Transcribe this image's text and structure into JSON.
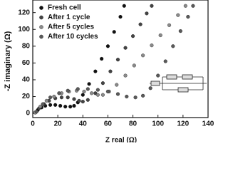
{
  "chart_data": {
    "type": "scatter",
    "x_label": "Z real (Ω)",
    "y_label": "-Z imaginary (Ω)",
    "xlim": [
      0,
      140
    ],
    "xticks": [
      0,
      20,
      40,
      60,
      80,
      100,
      120,
      140
    ],
    "ylim": [
      -5,
      135
    ],
    "yticks": [
      0,
      20,
      40,
      60,
      80,
      100,
      120
    ],
    "legend": "upper left",
    "series": [
      {
        "name": "Fresh cell",
        "color": "#111111",
        "x": [
          2,
          4,
          7,
          10,
          14,
          18,
          22,
          26,
          30,
          33,
          36,
          40,
          45,
          50,
          55,
          60,
          65,
          70,
          73
        ],
        "values": [
          1,
          4,
          7,
          9,
          10,
          10,
          9,
          8,
          8,
          9,
          13,
          22,
          35,
          50,
          65,
          80,
          97,
          115,
          128
        ]
      },
      {
        "name": "After 1 cycle",
        "color": "#444444",
        "x": [
          2,
          5,
          9,
          13,
          18,
          23,
          28,
          33,
          37,
          40,
          44,
          50,
          56,
          62,
          68,
          74,
          80,
          86,
          91,
          95
        ],
        "values": [
          1,
          6,
          11,
          15,
          18,
          19,
          19,
          17,
          15,
          14,
          16,
          24,
          36,
          50,
          64,
          78,
          92,
          106,
          119,
          128
        ]
      },
      {
        "name": "After 5 cycles",
        "color": "#8a8a8a",
        "x": [
          2,
          6,
          11,
          17,
          23,
          29,
          35,
          41,
          47,
          52,
          56,
          61,
          67,
          74,
          81,
          88,
          95,
          102,
          109,
          116,
          122
        ],
        "values": [
          1,
          8,
          15,
          20,
          24,
          26,
          27,
          26,
          24,
          22,
          22,
          26,
          34,
          45,
          57,
          69,
          81,
          93,
          105,
          117,
          128
        ]
      },
      {
        "name": "After 10 cycles",
        "color": "#5a5a5a",
        "x": [
          3,
          8,
          14,
          21,
          28,
          36,
          44,
          52,
          60,
          68,
          75,
          82,
          88,
          94,
          100,
          106,
          112,
          118,
          124,
          128
        ],
        "values": [
          2,
          11,
          19,
          24,
          27,
          29,
          29,
          28,
          26,
          23,
          20,
          19,
          21,
          30,
          45,
          62,
          80,
          98,
          115,
          128
        ]
      }
    ]
  }
}
